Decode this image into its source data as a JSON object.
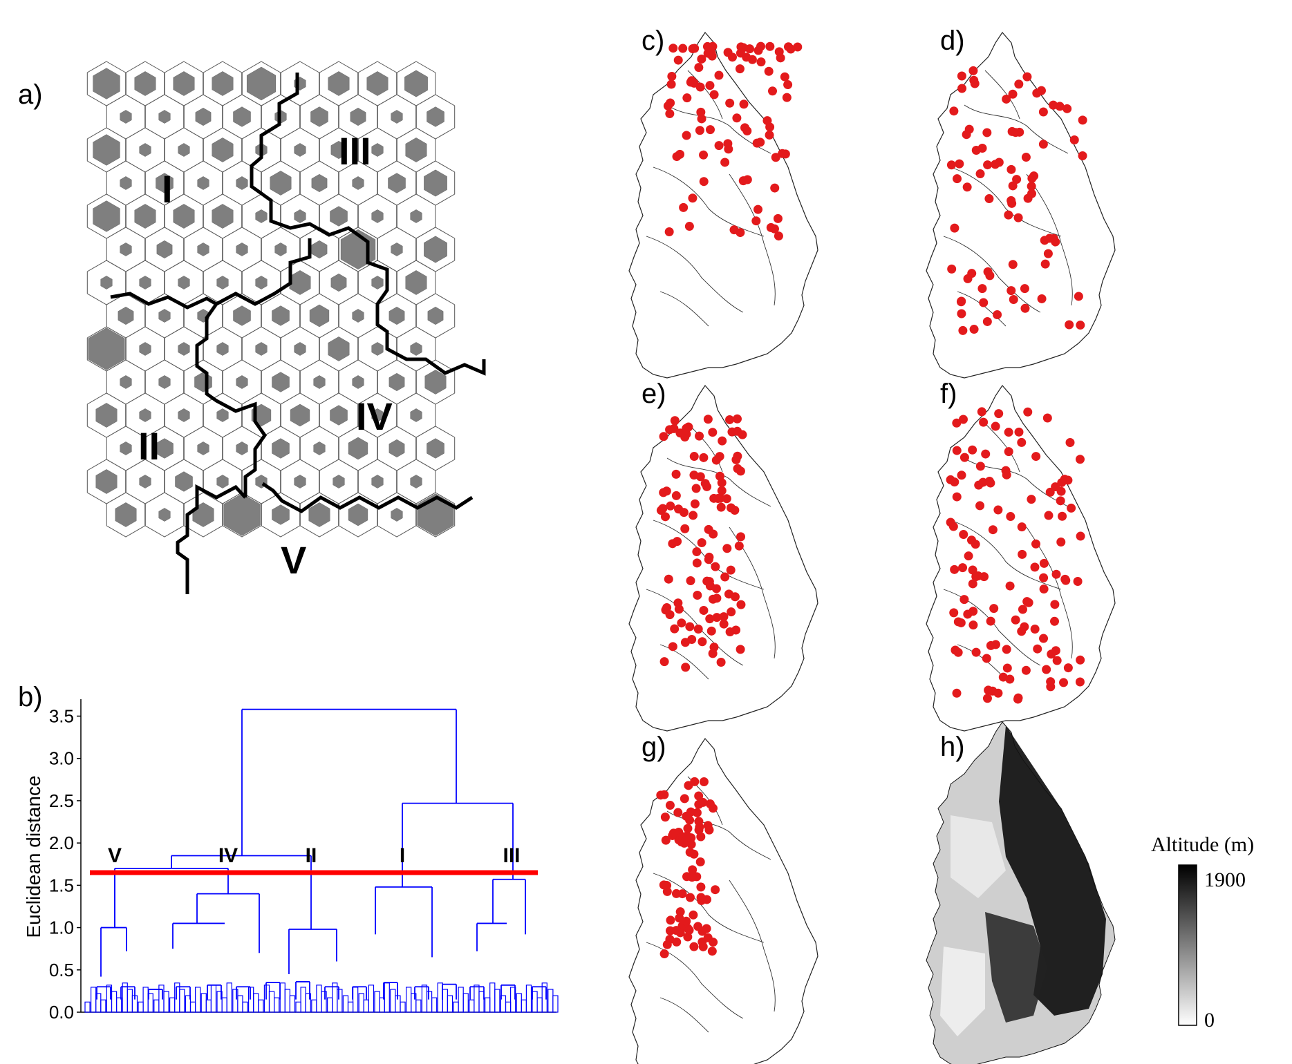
{
  "panels": {
    "a": "a)",
    "b": "b)",
    "c": "c)",
    "d": "d)",
    "e": "e)",
    "f": "f)",
    "g": "g)",
    "h": "h)"
  },
  "som": {
    "cluster_labels": [
      "I",
      "II",
      "III",
      "IV",
      "V"
    ],
    "hex_fill": "#7f7f7f",
    "border_color": "#000000"
  },
  "chart_data": {
    "type": "dendrogram",
    "ylabel": "Euclidean distance",
    "ylim": [
      0,
      3.7
    ],
    "yticks": [
      "0.0",
      "0.5",
      "1.0",
      "1.5",
      "2.0",
      "2.5",
      "3.0",
      "3.5"
    ],
    "cut_height": 1.65,
    "cluster_labels": [
      "V",
      "IV",
      "II",
      "I",
      "III"
    ],
    "merges": [
      {
        "name": "root",
        "height": 3.58
      },
      {
        "name": "V+IV+II",
        "height": 1.85
      },
      {
        "name": "I+III",
        "height": 2.47
      },
      {
        "name": "V+IV",
        "height": 1.7
      },
      {
        "name": "V",
        "height": 1.68
      },
      {
        "name": "IV",
        "height": 1.68
      },
      {
        "name": "II",
        "height": 1.83
      },
      {
        "name": "I",
        "height": 1.48
      },
      {
        "name": "III",
        "height": 1.57
      }
    ],
    "line_color": "#0000ff",
    "cut_color": "#ff0000"
  },
  "maps": {
    "point_color": "#e31a1c",
    "legend": {
      "title": "Altitude (m)",
      "max": "1900",
      "min": "0"
    }
  }
}
